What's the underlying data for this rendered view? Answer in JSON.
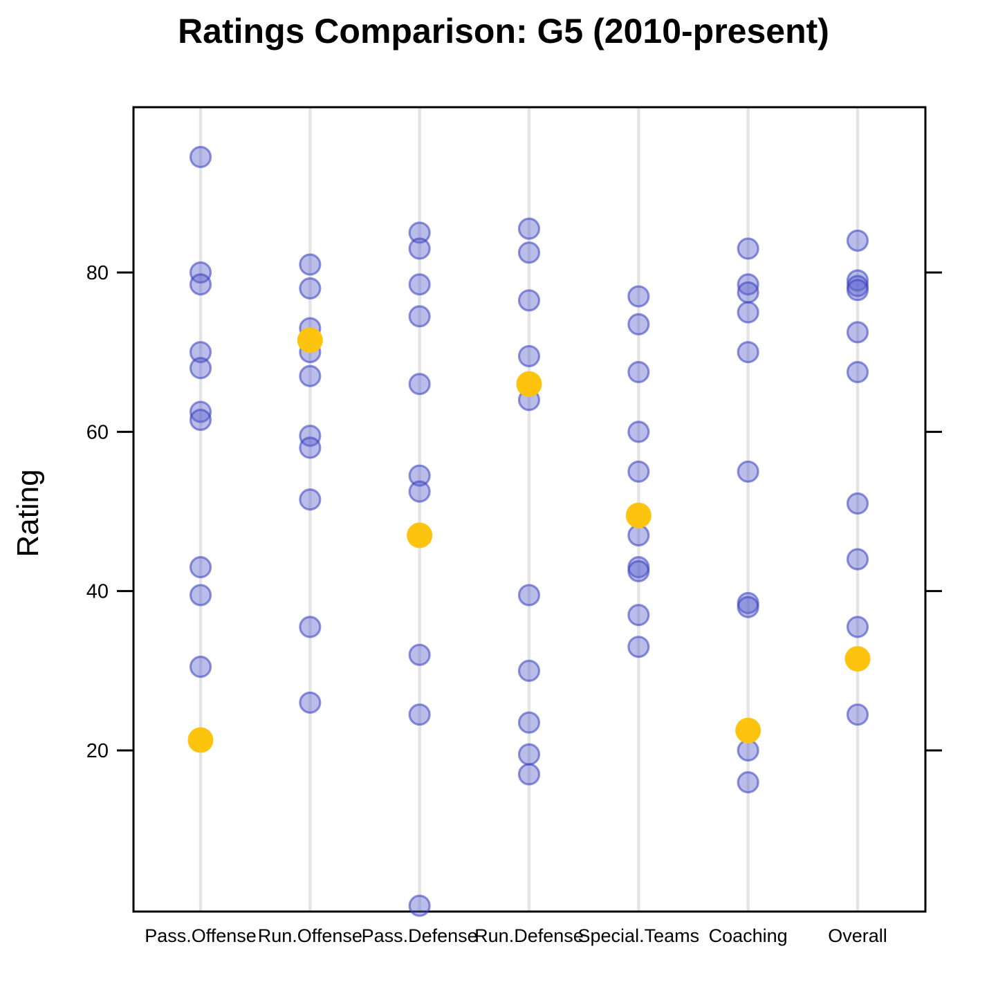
{
  "chart_data": {
    "type": "scatter",
    "title": "Ratings Comparison: G5 (2010-present)",
    "ylabel": "Rating",
    "xlabel": "",
    "ylim": [
      0,
      101
    ],
    "yticks": [
      80,
      60,
      40,
      20
    ],
    "grid": "vertical-category-gridlines",
    "legend": "none",
    "categories": [
      "Pass.Offense",
      "Run.Offense",
      "Pass.Defense",
      "Run.Defense",
      "Special.Teams",
      "Coaching",
      "Overall"
    ],
    "series": [
      {
        "name": "others",
        "marker": "circle-translucent-blue",
        "values_by_category": [
          [
            94.5,
            80,
            78.5,
            70,
            68,
            62.5,
            61.5,
            43,
            39.5,
            30.5
          ],
          [
            81,
            78,
            73,
            70,
            67,
            59.5,
            58,
            51.5,
            35.5,
            26
          ],
          [
            85,
            83,
            78.5,
            74.5,
            66,
            54.5,
            52.5,
            32,
            24.5,
            0.5
          ],
          [
            85.5,
            82.5,
            76.5,
            69.5,
            64,
            39.5,
            30,
            23.5,
            19.5,
            17
          ],
          [
            77,
            73.5,
            67.5,
            60,
            55,
            47,
            43,
            42.5,
            37,
            33
          ],
          [
            83,
            78.5,
            77.5,
            75,
            70,
            55,
            38.5,
            38,
            20,
            16
          ],
          [
            84,
            79,
            78.3,
            77.8,
            72.5,
            67.5,
            51,
            44,
            35.5,
            24.5
          ]
        ]
      },
      {
        "name": "highlight",
        "marker": "circle-solid-gold",
        "values": [
          21.3,
          71.5,
          47,
          66,
          49.5,
          22.5,
          31.5
        ]
      }
    ],
    "colors": {
      "blue_fill": "rgba(90,98,205,0.42)",
      "blue_stroke": "rgba(55,62,190,0.55)",
      "gold": "#FCC40F",
      "gridline": "#E4E4E4",
      "axis": "#000000",
      "text": "#000000"
    }
  }
}
